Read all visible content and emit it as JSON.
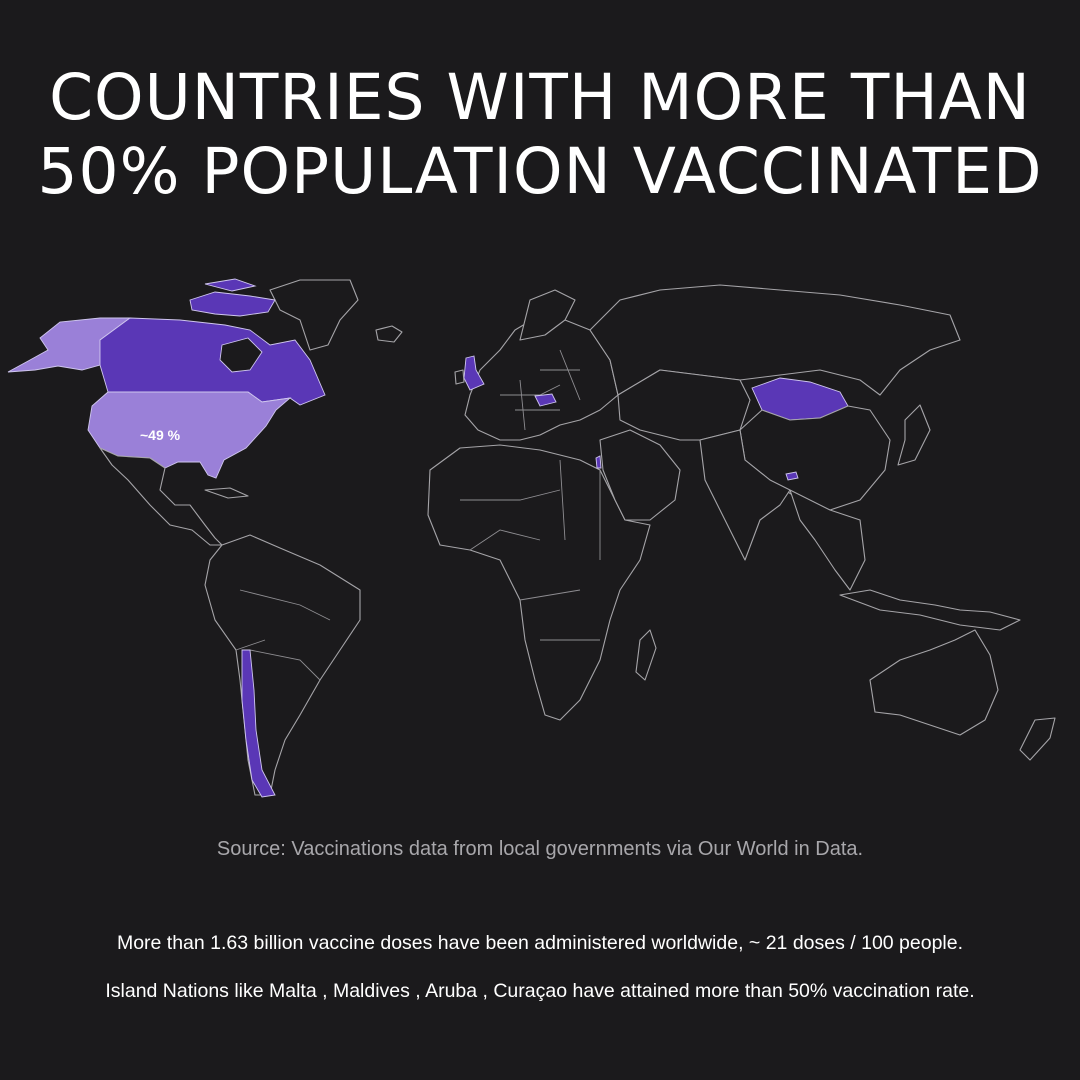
{
  "header": {
    "title_line1": "COUNTRIES WITH MORE THAN",
    "title_line2": "50% POPULATION VACCINATED"
  },
  "map": {
    "highlighted_countries": [
      {
        "name": "Canada",
        "shade": "dark"
      },
      {
        "name": "Alaska (United States)",
        "shade": "light"
      },
      {
        "name": "United States",
        "shade": "light",
        "label": "~49 %"
      },
      {
        "name": "United Kingdom",
        "shade": "dark"
      },
      {
        "name": "Hungary",
        "shade": "dark"
      },
      {
        "name": "Israel",
        "shade": "dark"
      },
      {
        "name": "Mongolia",
        "shade": "dark"
      },
      {
        "name": "Bhutan",
        "shade": "dark"
      },
      {
        "name": "Chile",
        "shade": "dark"
      }
    ],
    "colors": {
      "background": "#1b1a1c",
      "dark_purple": "#5a37b6",
      "light_purple": "#9a80d8",
      "borders": "#a5a4a8"
    },
    "us_label": "~49 %"
  },
  "footer": {
    "source": "Source: Vaccinations data from local governments via Our World in Data.",
    "note1": "More than 1.63 billion vaccine doses have been administered worldwide, ~ 21 doses / 100 people.",
    "note2": "Island Nations like Malta , Maldives , Aruba , Curaçao have attained more than 50% vaccination rate."
  }
}
